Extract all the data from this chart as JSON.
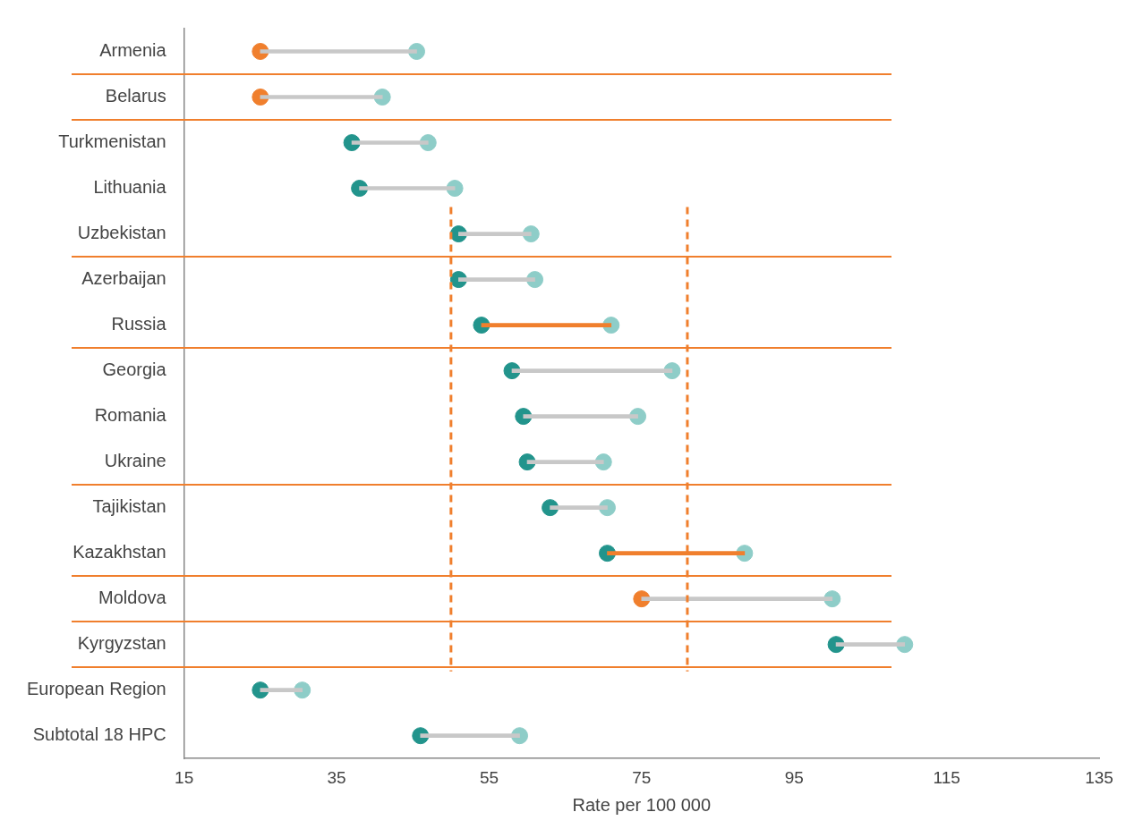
{
  "chart_data": {
    "type": "scatter",
    "orientation": "horizontal",
    "xlabel": "Rate per 100 000",
    "categories": [
      "Armenia",
      "Belarus",
      "Turkmenistan",
      "Lithuania",
      "Uzbekistan",
      "Azerbaijan",
      "Russia",
      "Georgia",
      "Romania",
      "Ukraine",
      "Tajikistan",
      "Kazakhstan",
      "Moldova",
      "Kyrgyzstan",
      "European Region",
      "Subtotal 18 HPC"
    ],
    "xlim": [
      15,
      135
    ],
    "xticks": [
      15,
      35,
      55,
      75,
      95,
      115,
      135
    ],
    "grid": false,
    "legend": false,
    "marker": "circle",
    "series": [
      {
        "type": "bar",
        "color": "#c8c8c8",
        "base": [
          25,
          25,
          37,
          38,
          51,
          51,
          54,
          58,
          59.5,
          60,
          63,
          70.5,
          75,
          100.5,
          25,
          46
        ],
        "values": [
          20.5,
          16,
          10,
          12.5,
          9.5,
          10,
          17,
          21,
          15,
          10,
          7.5,
          18,
          25,
          9,
          5.5,
          13
        ],
        "colors": [
          "#c8c8c8",
          "#c8c8c8",
          "#c8c8c8",
          "#c8c8c8",
          "#c8c8c8",
          "#c8c8c8",
          "#f07f2d",
          "#c8c8c8",
          "#c8c8c8",
          "#c8c8c8",
          "#c8c8c8",
          "#f07f2d",
          "#c8c8c8",
          "#c8c8c8",
          "#c8c8c8",
          "#c8c8c8"
        ]
      },
      {
        "color": "#8ecdc8",
        "values": [
          45.5,
          41,
          47,
          50.5,
          60.5,
          61,
          71,
          79,
          74.5,
          70,
          70.5,
          88.5,
          100,
          109.5,
          30.5,
          59
        ]
      },
      {
        "color": "#22948c",
        "values": [
          25,
          25,
          37,
          38,
          51,
          51,
          54,
          58,
          59.5,
          60,
          63,
          70.5,
          75,
          100.5,
          25,
          46
        ],
        "colors": [
          "#f07f2d",
          "#f07f2d",
          "#22948c",
          "#22948c",
          "#22948c",
          "#22948c",
          "#22948c",
          "#22948c",
          "#22948c",
          "#22948c",
          "#22948c",
          "#22948c",
          "#f07f2d",
          "#22948c",
          "#22948c",
          "#22948c"
        ]
      }
    ],
    "ref_lines": [
      {
        "axis": "x",
        "value": 50,
        "color": "#f07f2d",
        "line_style": "dashed"
      },
      {
        "axis": "x",
        "value": 81,
        "color": "#f07f2d",
        "line_style": "dashed"
      }
    ]
  }
}
